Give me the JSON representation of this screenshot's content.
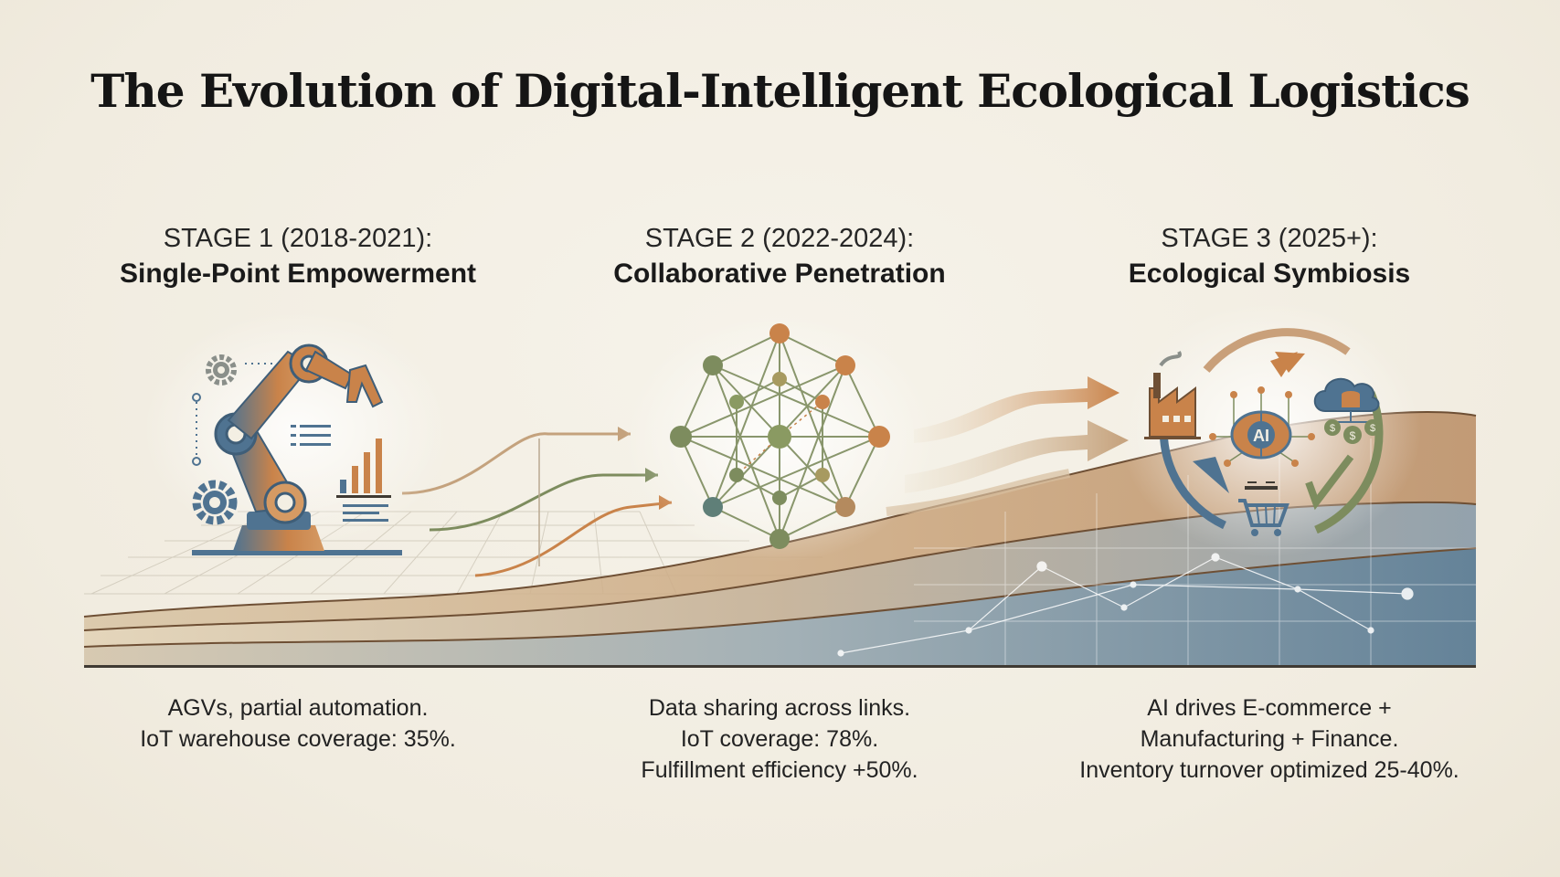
{
  "title": "The Evolution of Digital-Intelligent Ecological Logistics",
  "stages": [
    {
      "label": "STAGE 1 (2018-2021):",
      "name": "Single-Point Empowerment",
      "description": [
        "AGVs, partial automation.",
        "IoT warehouse coverage: 35%."
      ],
      "icon": "robot-arm-icon"
    },
    {
      "label": "STAGE 2 (2022-2024):",
      "name": "Collaborative Penetration",
      "description": [
        "Data sharing across links.",
        "IoT coverage: 78%.",
        "Fulfillment efficiency +50%."
      ],
      "icon": "network-graph-icon"
    },
    {
      "label": "STAGE 3 (2025+):",
      "name": "Ecological Symbiosis",
      "description": [
        "AI drives E-commerce +",
        "Manufacturing + Finance.",
        "Inventory turnover optimized 25-40%."
      ],
      "icon": "ecosystem-cycle-icon",
      "center_badge": "AI"
    }
  ],
  "colors": {
    "orange": "#c9834a",
    "olive": "#7d8c5e",
    "blue": "#4f7391",
    "sand": "#d8c4a4",
    "brown": "#7a5a3c"
  }
}
